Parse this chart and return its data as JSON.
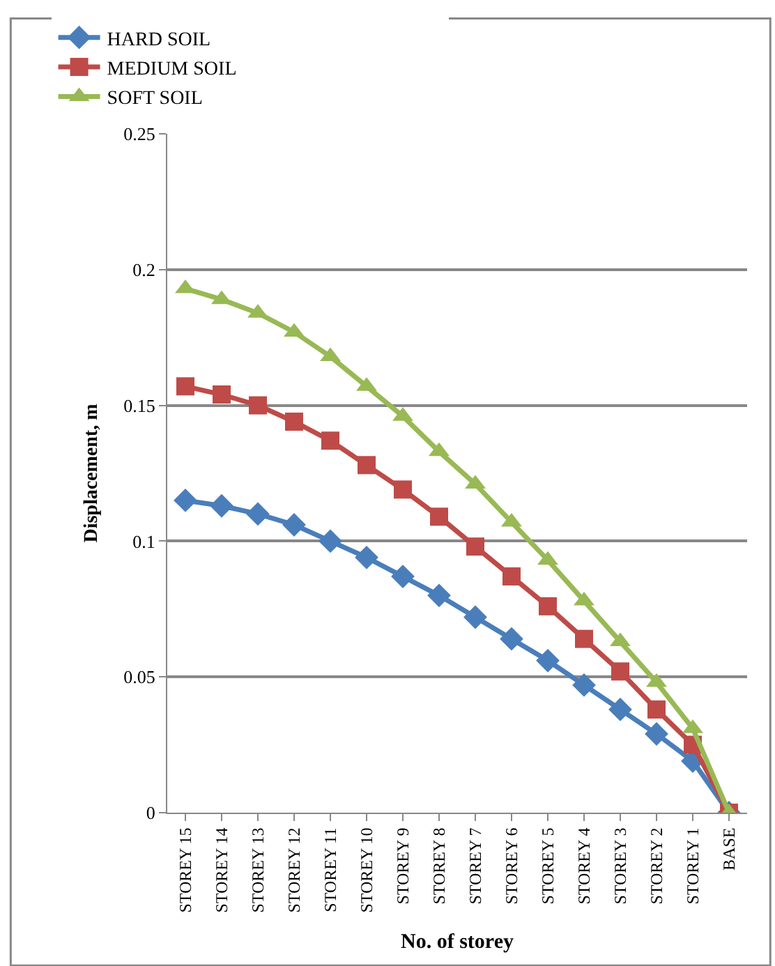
{
  "chart_data": {
    "type": "line",
    "xlabel": "No. of storey",
    "ylabel": "Displacement, m",
    "categories": [
      "STOREY 15",
      "STOREY 14",
      "STOREY 13",
      "STOREY 12",
      "STOREY 11",
      "STOREY 10",
      "STOREY 9",
      "STOREY 8",
      "STOREY 7",
      "STOREY 6",
      "STOREY 5",
      "STOREY 4",
      "STOREY 3",
      "STOREY 2",
      "STOREY 1",
      "BASE"
    ],
    "series": [
      {
        "name": "HARD SOIL",
        "color": "#4a7ebb",
        "marker": "diamond",
        "values": [
          0.115,
          0.113,
          0.11,
          0.106,
          0.1,
          0.094,
          0.087,
          0.08,
          0.072,
          0.064,
          0.056,
          0.047,
          0.038,
          0.029,
          0.019,
          0
        ]
      },
      {
        "name": "MEDIUM SOIL",
        "color": "#be4b48",
        "marker": "square",
        "values": [
          0.157,
          0.154,
          0.15,
          0.144,
          0.137,
          0.128,
          0.119,
          0.109,
          0.098,
          0.087,
          0.076,
          0.064,
          0.052,
          0.038,
          0.025,
          0
        ]
      },
      {
        "name": "SOFT SOIL",
        "color": "#98b954",
        "marker": "triangle",
        "values": [
          0.193,
          0.189,
          0.184,
          0.177,
          0.168,
          0.157,
          0.146,
          0.133,
          0.121,
          0.107,
          0.093,
          0.078,
          0.063,
          0.048,
          0.031,
          0
        ]
      }
    ],
    "ylim": [
      0,
      0.25
    ],
    "yticks": [
      0,
      0.05,
      0.1,
      0.15,
      0.2,
      0.25
    ],
    "grid": "y",
    "legend": "top"
  }
}
